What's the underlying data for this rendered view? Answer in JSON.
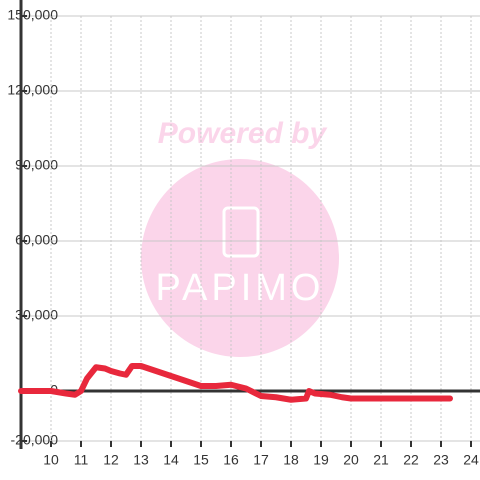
{
  "chart_data": {
    "type": "line",
    "watermark": {
      "text": "Powered by",
      "logo": "PAPIMO"
    },
    "x": [
      9,
      10,
      10.5,
      10.8,
      11,
      11.2,
      11.5,
      11.8,
      12,
      12.3,
      12.5,
      12.7,
      13,
      13.5,
      14,
      14.5,
      15,
      15.5,
      16,
      16.5,
      17,
      17.5,
      18,
      18.5,
      18.6,
      18.8,
      19.3,
      19.7,
      20,
      21,
      22,
      23.3
    ],
    "series": [
      {
        "color": "#e8283c",
        "values": [
          0,
          0,
          -1000,
          -1500,
          0,
          5000,
          9500,
          9000,
          8000,
          7000,
          6500,
          10000,
          10000,
          8000,
          6000,
          4000,
          2000,
          2000,
          2500,
          1000,
          -2000,
          -2500,
          -3500,
          -3000,
          0,
          -1000,
          -1500,
          -2500,
          -3000,
          -3000,
          -3000,
          -3000
        ]
      }
    ],
    "xlim": [
      9,
      24.3
    ],
    "xticks": [
      10,
      11,
      12,
      13,
      14,
      15,
      16,
      17,
      18,
      19,
      20,
      21,
      22,
      23,
      24
    ],
    "ylim": [
      -20000,
      150000
    ],
    "yticks": [
      {
        "value": -20000,
        "label": "-20,000"
      },
      0,
      {
        "value": 30000,
        "label": "30,000"
      },
      {
        "value": 60000,
        "label": "60,000"
      },
      {
        "value": 90000,
        "label": "90,000"
      },
      {
        "value": 120000,
        "label": "120,000"
      },
      {
        "value": 150000,
        "label": "150,000"
      }
    ],
    "grid": true
  }
}
